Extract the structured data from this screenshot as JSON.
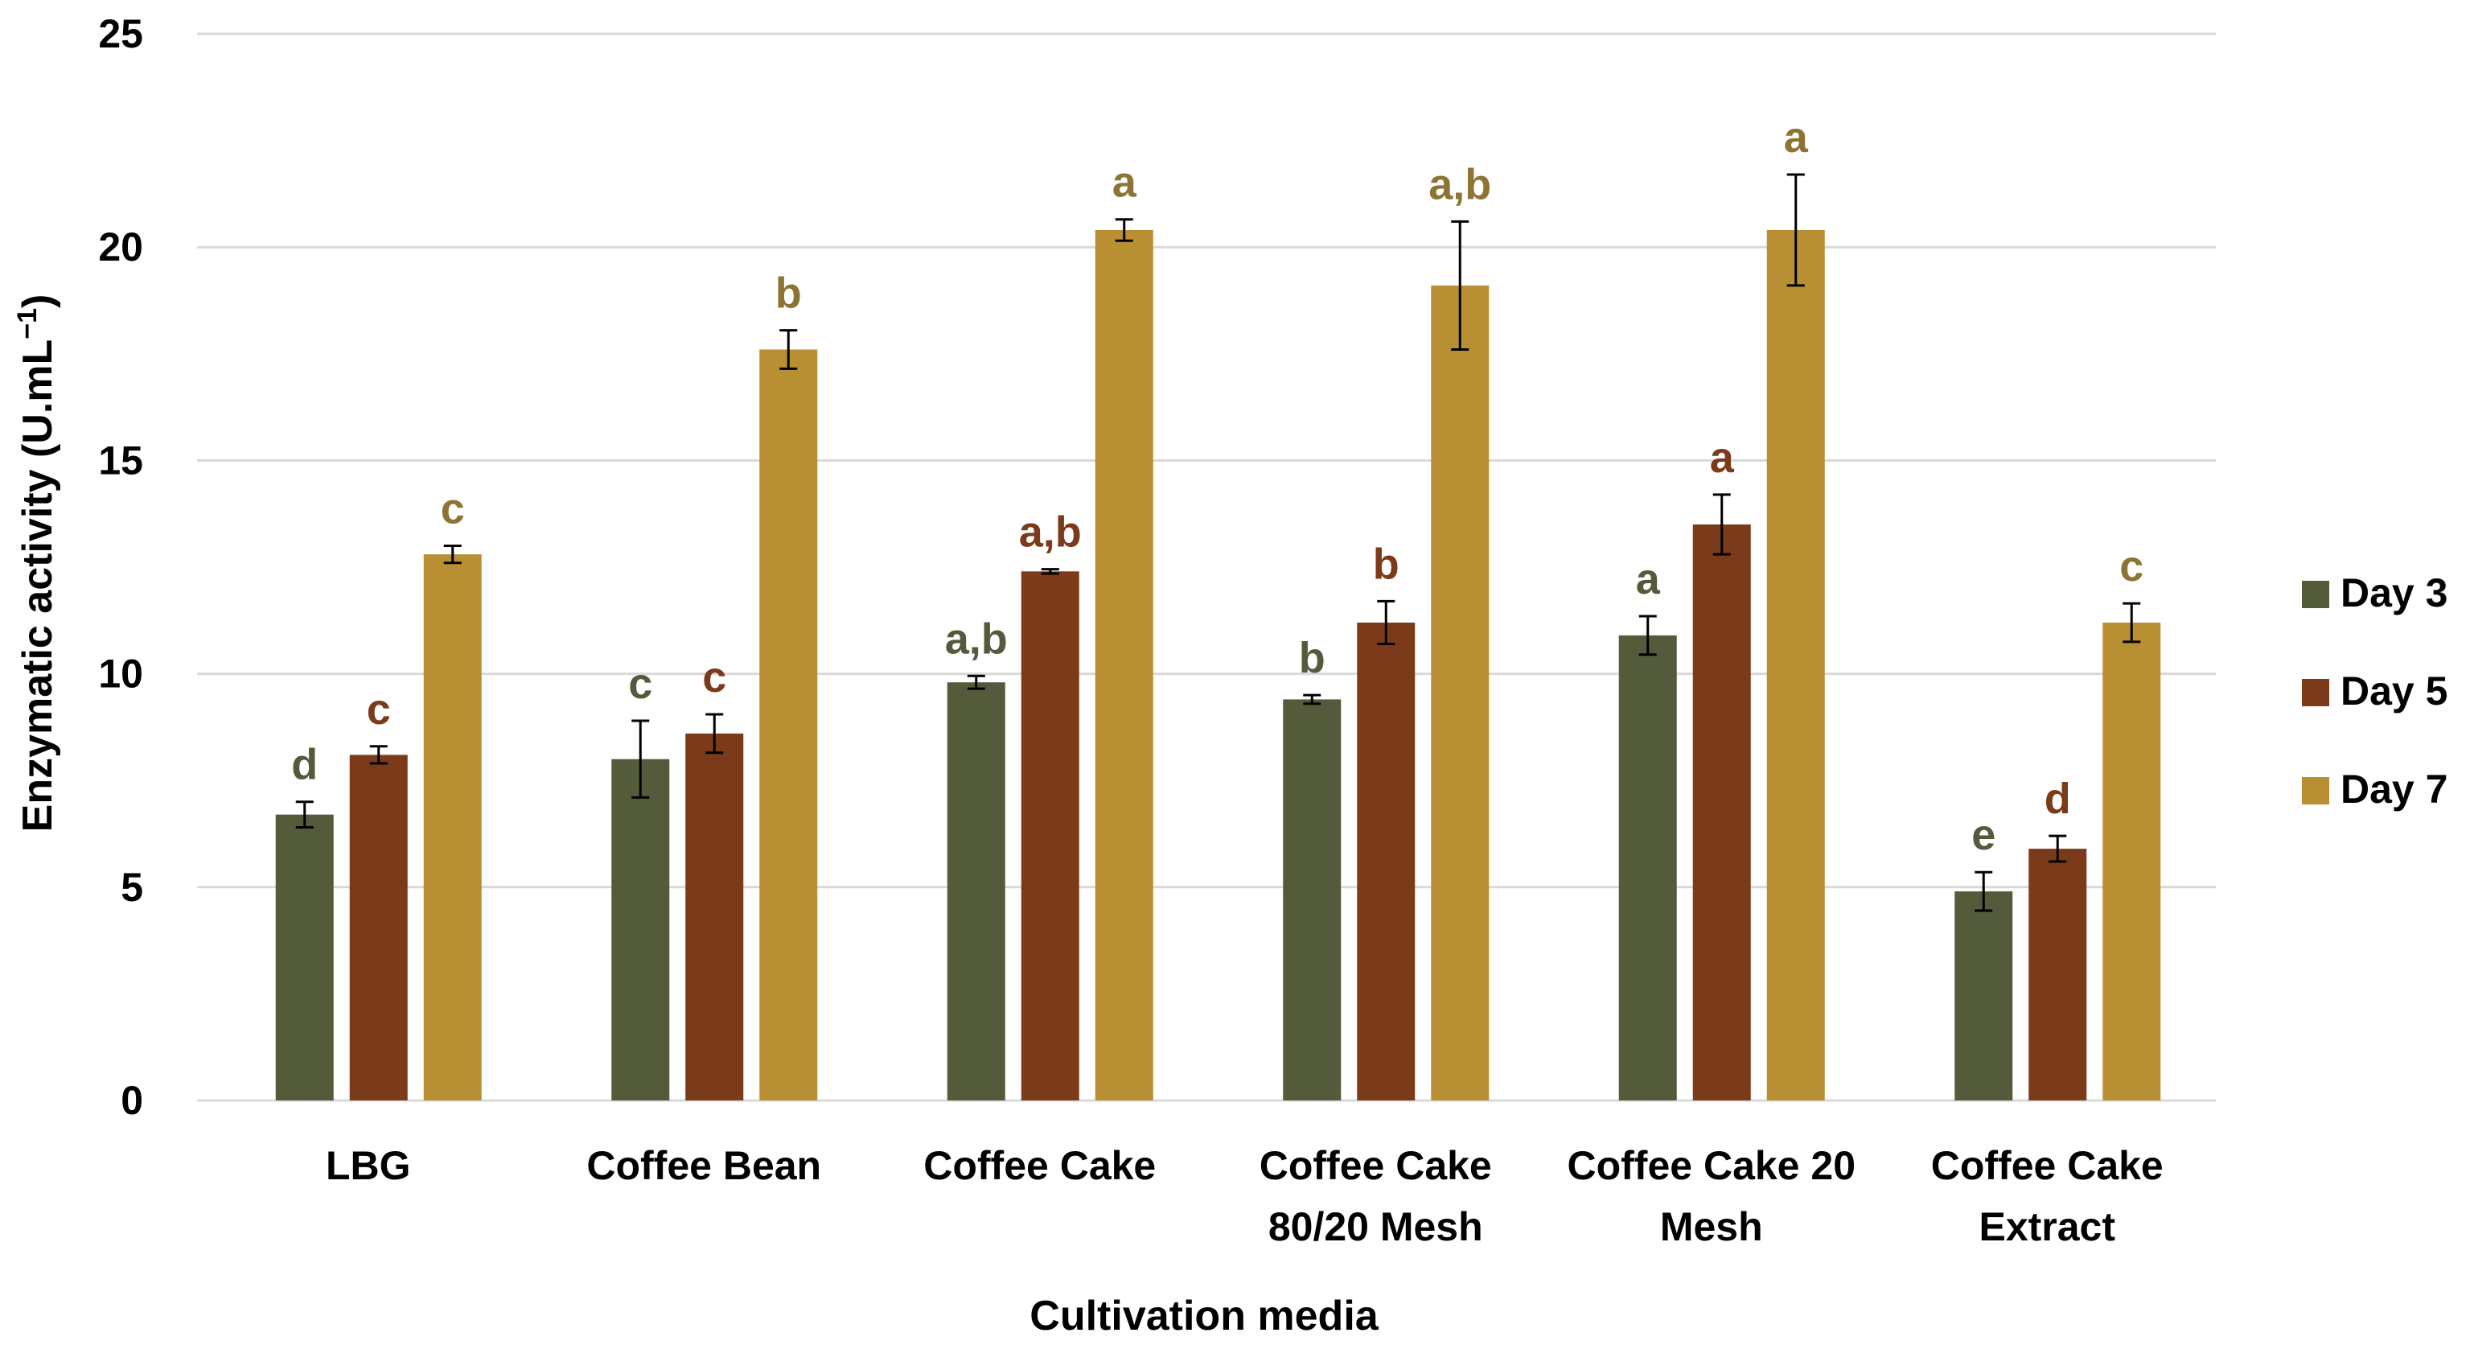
{
  "chart_data": {
    "type": "bar",
    "title": "",
    "xlabel": "Cultivation media",
    "ylabel_main": "Enzymatic activity (U.mL",
    "ylabel_sup": "−1",
    "ylabel_close": ")",
    "ylim": [
      0,
      25
    ],
    "yticks": [
      "0",
      "5",
      "10",
      "15",
      "20",
      "25"
    ],
    "ytick_values": [
      0,
      5,
      10,
      15,
      20,
      25
    ],
    "grid": true,
    "legend_position": "right",
    "categories": [
      {
        "lines": [
          "LBG"
        ]
      },
      {
        "lines": [
          "Coffee Bean"
        ]
      },
      {
        "lines": [
          "Coffee Cake"
        ]
      },
      {
        "lines": [
          "Coffee Cake",
          "80/20 Mesh"
        ]
      },
      {
        "lines": [
          "Coffee Cake 20",
          "Mesh"
        ]
      },
      {
        "lines": [
          "Coffee Cake",
          "Extract"
        ]
      }
    ],
    "series": [
      {
        "name": "Day 3",
        "color": "#545b3b",
        "label_color": "#545b3b",
        "values": [
          6.7,
          8.0,
          9.8,
          9.4,
          10.9,
          4.9
        ],
        "errors": [
          0.3,
          0.9,
          0.15,
          0.1,
          0.45,
          0.45
        ],
        "letters": [
          "d",
          "c",
          "a,b",
          "b",
          "a",
          "e"
        ]
      },
      {
        "name": "Day 5",
        "color": "#7b3b1b",
        "label_color": "#7b3b1b",
        "values": [
          8.1,
          8.6,
          12.4,
          11.2,
          13.5,
          5.9
        ],
        "errors": [
          0.2,
          0.45,
          0.05,
          0.5,
          0.7,
          0.3
        ],
        "letters": [
          "c",
          "c",
          "a,b",
          "b",
          "a",
          "d"
        ]
      },
      {
        "name": "Day 7",
        "color": "#b88f33",
        "label_color": "#8d7432",
        "values": [
          12.8,
          17.6,
          20.4,
          19.1,
          20.4,
          11.2
        ],
        "errors": [
          0.2,
          0.45,
          0.25,
          1.5,
          1.3,
          0.45
        ],
        "letters": [
          "c",
          "b",
          "a",
          "a,b",
          "a",
          "c"
        ]
      }
    ]
  }
}
